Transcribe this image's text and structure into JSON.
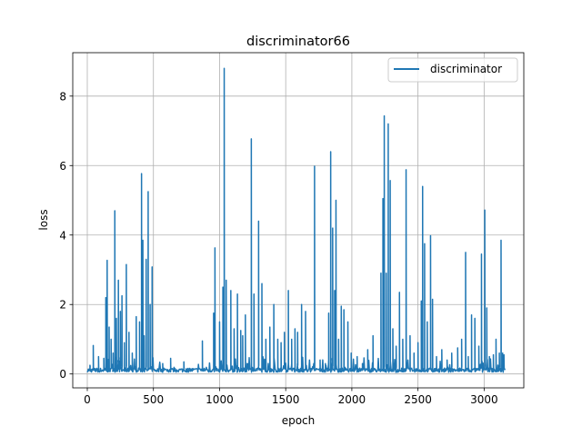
{
  "chart_data": {
    "type": "line",
    "title": "discriminator66",
    "xlabel": "epoch",
    "ylabel": "loss",
    "xlim": [
      -110,
      3300
    ],
    "ylim": [
      -0.4,
      9.25
    ],
    "xticks": [
      0,
      500,
      1000,
      1500,
      2000,
      2500,
      3000
    ],
    "yticks": [
      0,
      2,
      4,
      6,
      8
    ],
    "grid": true,
    "legend_position": "upper-right",
    "series": [
      {
        "name": "discriminator",
        "color": "#1f77b4",
        "baseline": 0.05,
        "x_range": [
          0,
          3160
        ],
        "spikes": [
          [
            20,
            0.25
          ],
          [
            45,
            0.82
          ],
          [
            85,
            0.5
          ],
          [
            125,
            0.45
          ],
          [
            140,
            2.2
          ],
          [
            150,
            3.27
          ],
          [
            165,
            1.35
          ],
          [
            180,
            1.0
          ],
          [
            195,
            0.6
          ],
          [
            208,
            4.7
          ],
          [
            220,
            1.6
          ],
          [
            235,
            2.7
          ],
          [
            250,
            1.8
          ],
          [
            262,
            2.25
          ],
          [
            280,
            0.9
          ],
          [
            295,
            3.15
          ],
          [
            315,
            1.2
          ],
          [
            340,
            0.6
          ],
          [
            370,
            1.65
          ],
          [
            395,
            1.5
          ],
          [
            410,
            5.77
          ],
          [
            420,
            3.85
          ],
          [
            430,
            1.1
          ],
          [
            445,
            3.3
          ],
          [
            460,
            5.25
          ],
          [
            475,
            2.0
          ],
          [
            490,
            3.08
          ],
          [
            570,
            0.3
          ],
          [
            630,
            0.45
          ],
          [
            730,
            0.35
          ],
          [
            870,
            0.95
          ],
          [
            955,
            1.75
          ],
          [
            965,
            3.63
          ],
          [
            1000,
            1.5
          ],
          [
            1025,
            2.5
          ],
          [
            1035,
            8.8
          ],
          [
            1050,
            2.7
          ],
          [
            1085,
            2.4
          ],
          [
            1110,
            1.3
          ],
          [
            1135,
            2.3
          ],
          [
            1160,
            1.25
          ],
          [
            1175,
            1.1
          ],
          [
            1195,
            1.7
          ],
          [
            1240,
            6.77
          ],
          [
            1260,
            2.3
          ],
          [
            1295,
            4.4
          ],
          [
            1320,
            2.6
          ],
          [
            1350,
            1.0
          ],
          [
            1380,
            1.35
          ],
          [
            1410,
            2.0
          ],
          [
            1440,
            1.0
          ],
          [
            1465,
            0.9
          ],
          [
            1490,
            1.2
          ],
          [
            1520,
            2.4
          ],
          [
            1545,
            1.0
          ],
          [
            1570,
            1.3
          ],
          [
            1590,
            1.2
          ],
          [
            1620,
            2.0
          ],
          [
            1650,
            1.8
          ],
          [
            1680,
            0.3
          ],
          [
            1718,
            5.98
          ],
          [
            1760,
            0.4
          ],
          [
            1800,
            0.3
          ],
          [
            1825,
            1.75
          ],
          [
            1840,
            6.4
          ],
          [
            1855,
            4.2
          ],
          [
            1870,
            2.4
          ],
          [
            1880,
            5.0
          ],
          [
            1900,
            1.0
          ],
          [
            1920,
            1.95
          ],
          [
            1940,
            1.85
          ],
          [
            1970,
            1.5
          ],
          [
            1995,
            0.6
          ],
          [
            2040,
            0.5
          ],
          [
            2080,
            0.3
          ],
          [
            2120,
            0.7
          ],
          [
            2160,
            1.1
          ],
          [
            2220,
            2.9
          ],
          [
            2235,
            5.05
          ],
          [
            2245,
            7.43
          ],
          [
            2260,
            2.9
          ],
          [
            2275,
            7.2
          ],
          [
            2290,
            5.57
          ],
          [
            2310,
            1.3
          ],
          [
            2335,
            0.8
          ],
          [
            2360,
            2.35
          ],
          [
            2385,
            1.0
          ],
          [
            2410,
            5.88
          ],
          [
            2440,
            1.1
          ],
          [
            2470,
            0.6
          ],
          [
            2500,
            0.9
          ],
          [
            2525,
            2.1
          ],
          [
            2535,
            5.4
          ],
          [
            2550,
            3.75
          ],
          [
            2570,
            1.5
          ],
          [
            2595,
            3.98
          ],
          [
            2610,
            2.15
          ],
          [
            2640,
            0.5
          ],
          [
            2680,
            0.7
          ],
          [
            2720,
            0.4
          ],
          [
            2755,
            0.6
          ],
          [
            2800,
            0.75
          ],
          [
            2830,
            1.0
          ],
          [
            2860,
            3.5
          ],
          [
            2880,
            0.5
          ],
          [
            2905,
            1.7
          ],
          [
            2930,
            1.6
          ],
          [
            2960,
            0.8
          ],
          [
            2980,
            3.45
          ],
          [
            3005,
            4.72
          ],
          [
            3020,
            1.9
          ],
          [
            3040,
            0.5
          ],
          [
            3070,
            0.55
          ],
          [
            3090,
            1.0
          ],
          [
            3115,
            0.6
          ],
          [
            3128,
            3.85
          ],
          [
            3140,
            0.6
          ],
          [
            3150,
            0.55
          ]
        ]
      }
    ]
  }
}
